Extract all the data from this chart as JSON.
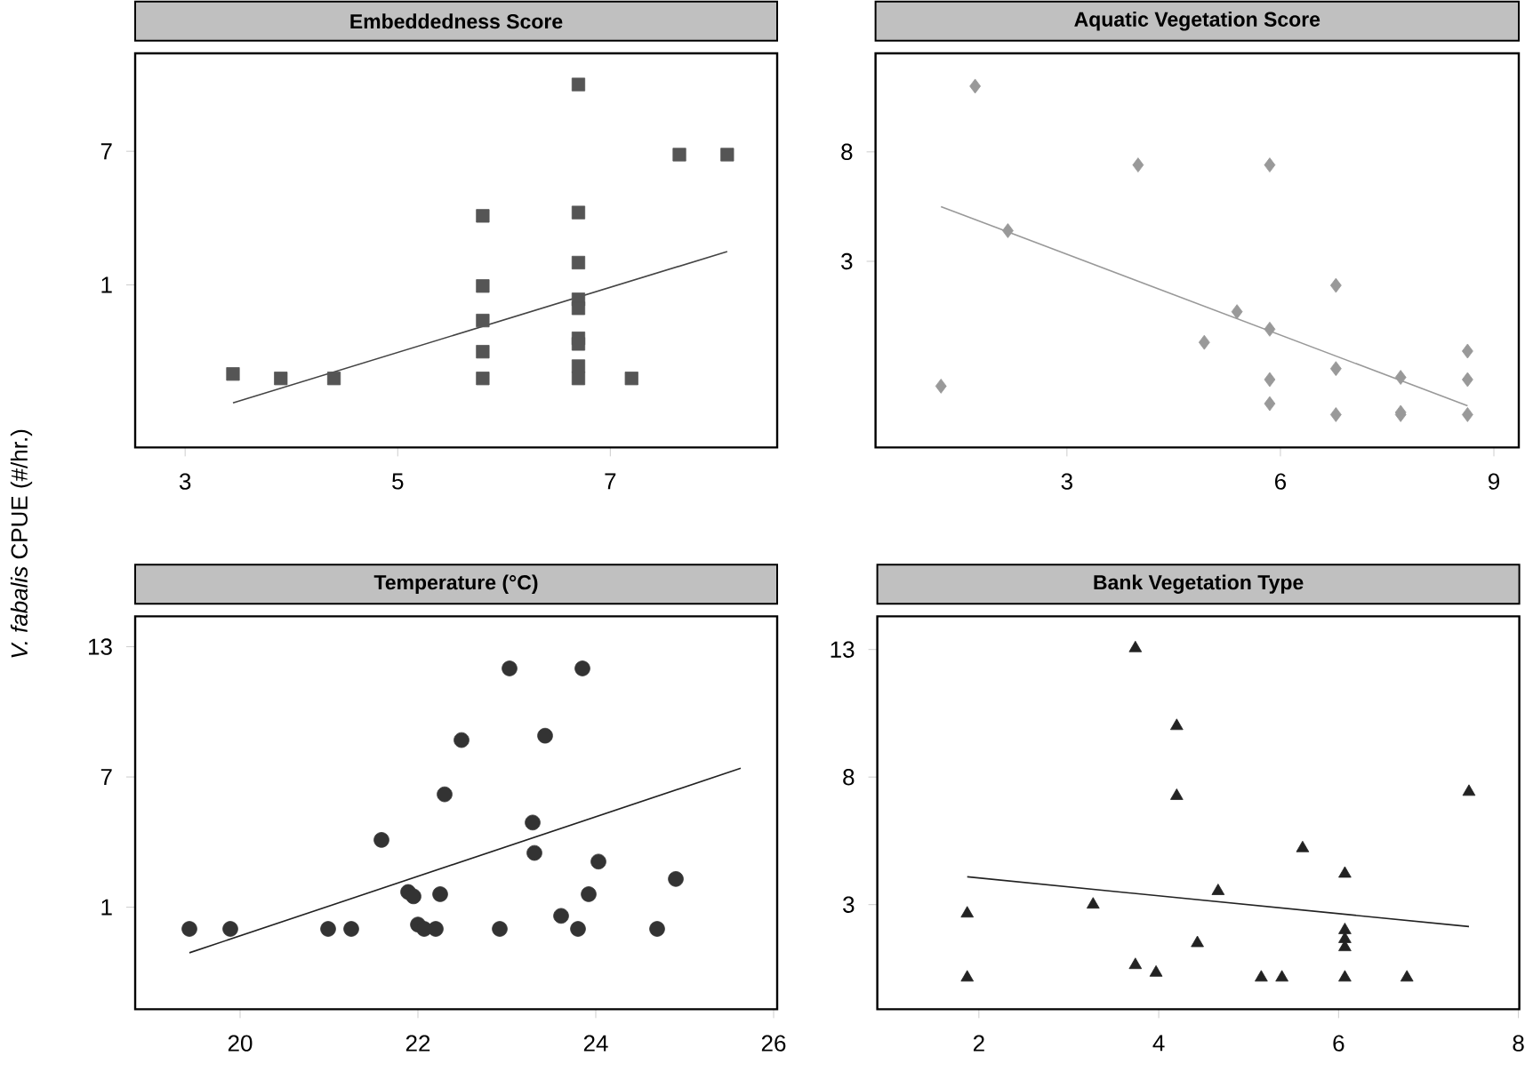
{
  "chart_data": [
    {
      "type": "scatter",
      "title": "Embeddedness Score",
      "ylabel": "*V. fabalis* CPUE (#/hr.)",
      "xlim": [
        2.53,
        8.57
      ],
      "ylim": [
        -6.3,
        11.4
      ],
      "xticks": [
        3,
        5,
        7
      ],
      "yticks": [
        1,
        7
      ],
      "series": [
        {
          "color": "#555555",
          "marker": "square",
          "x": [
            3.45,
            3.9,
            4.4,
            5.8,
            5.8,
            5.8,
            5.8,
            5.8,
            6.7,
            6.7,
            6.7,
            6.7,
            6.7,
            6.7,
            6.7,
            6.7,
            6.7,
            7.2,
            7.65,
            8.1
          ],
          "values": [
            -3.0,
            -3.2,
            -3.2,
            4.1,
            0.95,
            -0.6,
            -2.0,
            -3.2,
            10.0,
            4.25,
            2.0,
            0.35,
            -0.05,
            -1.4,
            -1.65,
            -2.65,
            -3.2,
            -3.2,
            6.85,
            6.85
          ]
        },
        {
          "type": "line",
          "color": "#444444",
          "x": [
            3.45,
            8.1
          ],
          "values": [
            -4.3,
            2.5
          ]
        }
      ]
    },
    {
      "type": "scatter",
      "title": "Aquatic Vegetation Score",
      "xlim": [
        0.31,
        9.35
      ],
      "ylim": [
        -5.5,
        12.5
      ],
      "xticks": [
        3,
        6,
        9
      ],
      "yticks": [
        3,
        8
      ],
      "series": [
        {
          "color": "#999999",
          "marker": "diamond",
          "x": [
            1.23,
            1.71,
            2.17,
            4.0,
            4.93,
            5.39,
            5.85,
            5.85,
            5.85,
            5.85,
            6.78,
            6.78,
            6.78,
            7.69,
            7.69,
            7.69,
            8.63,
            8.63,
            8.63
          ],
          "values": [
            -2.7,
            11.0,
            4.4,
            7.4,
            -0.7,
            0.7,
            7.4,
            -0.1,
            -2.4,
            -3.5,
            1.9,
            -1.9,
            -4.0,
            -2.3,
            -3.9,
            -4.0,
            -1.1,
            -2.4,
            -4.0
          ]
        },
        {
          "type": "line",
          "color": "#999999",
          "x": [
            1.23,
            8.63
          ],
          "values": [
            5.5,
            -3.6
          ]
        }
      ]
    },
    {
      "type": "scatter",
      "title": "Temperature (°C)",
      "xlim": [
        18.82,
        26.04
      ],
      "ylim": [
        -3.7,
        14.4
      ],
      "xticks": [
        20,
        22,
        24,
        26
      ],
      "yticks": [
        1,
        7,
        13
      ],
      "series": [
        {
          "color": "#333333",
          "marker": "circle",
          "x": [
            19.43,
            19.89,
            20.99,
            21.25,
            21.59,
            21.89,
            21.95,
            22.0,
            22.07,
            22.2,
            22.25,
            22.3,
            22.49,
            22.92,
            23.03,
            23.29,
            23.31,
            23.43,
            23.61,
            23.8,
            23.85,
            23.92,
            24.03,
            24.69,
            24.9
          ],
          "values": [
            0.0,
            0.0,
            0.0,
            0.0,
            4.1,
            1.7,
            1.5,
            0.2,
            0.0,
            0.0,
            1.6,
            6.2,
            8.7,
            0.0,
            12.0,
            4.9,
            3.5,
            8.9,
            0.6,
            0.0,
            12.0,
            1.6,
            3.1,
            0.0,
            2.3
          ]
        },
        {
          "type": "line",
          "color": "#222222",
          "x": [
            19.43,
            25.63
          ],
          "values": [
            -1.1,
            7.4
          ]
        }
      ]
    },
    {
      "type": "scatter",
      "title": "Bank Vegetation Type",
      "xlim": [
        0.87,
        8.01
      ],
      "ylim": [
        -1.1,
        14.3
      ],
      "xticks": [
        2,
        4,
        6,
        8
      ],
      "yticks": [
        3,
        8,
        13
      ],
      "series": [
        {
          "color": "#222222",
          "marker": "triangle",
          "x": [
            1.87,
            1.87,
            3.27,
            3.74,
            3.74,
            3.97,
            4.2,
            4.2,
            4.43,
            4.66,
            5.14,
            5.37,
            5.6,
            6.07,
            6.07,
            6.07,
            6.07,
            6.07,
            6.76,
            7.45
          ],
          "values": [
            2.65,
            0.14,
            3.0,
            13.05,
            0.63,
            0.33,
            10.0,
            7.26,
            1.49,
            3.53,
            0.14,
            0.14,
            5.21,
            4.21,
            2.0,
            1.65,
            1.33,
            0.14,
            0.14,
            7.42
          ]
        },
        {
          "type": "line",
          "color": "#222222",
          "x": [
            1.87,
            7.45
          ],
          "values": [
            4.09,
            2.14
          ]
        }
      ]
    }
  ]
}
